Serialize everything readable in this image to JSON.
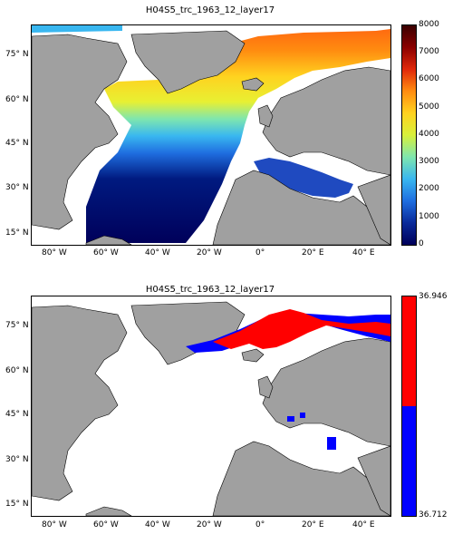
{
  "panels": [
    {
      "title": "H04S5_trc_1963_12_layer17",
      "lon_ticks": [
        "80° W",
        "60° W",
        "40° W",
        "20° W",
        "0°",
        "20° E",
        "40° E"
      ],
      "lat_ticks": [
        "75° N",
        "60° N",
        "45° N",
        "30° N",
        "15° N"
      ],
      "colorbar": {
        "type": "continuous",
        "min": 0,
        "max": 8000,
        "tick_labels": [
          "0",
          "1000",
          "2000",
          "3000",
          "4000",
          "5000",
          "6000",
          "7000",
          "8000"
        ],
        "colors": [
          "#00005a",
          "#0a2a9a",
          "#1f6ee0",
          "#39b7f0",
          "#7fe6ae",
          "#d8f03a",
          "#ffd21f",
          "#ff8c10",
          "#e0280a",
          "#8a0000",
          "#3a0000"
        ]
      }
    },
    {
      "title": "H04S5_trc_1963_12_layer17",
      "lon_ticks": [
        "80° W",
        "60° W",
        "40° W",
        "20° W",
        "0°",
        "20° E",
        "40° E"
      ],
      "lat_ticks": [
        "75° N",
        "60° N",
        "45° N",
        "30° N",
        "15° N"
      ],
      "colorbar": {
        "type": "two-class",
        "min": 36.712,
        "max": 36.946,
        "tick_labels": [
          "36.712",
          "36.946"
        ],
        "colors": [
          "#0000ff",
          "#ff0000"
        ]
      }
    }
  ],
  "map_extent": {
    "lon_min": -90,
    "lon_max": 50,
    "lat_min": 10,
    "lat_max": 85
  },
  "land_color": "#a0a0a0",
  "ocean_no_data_color": "#ffffff"
}
